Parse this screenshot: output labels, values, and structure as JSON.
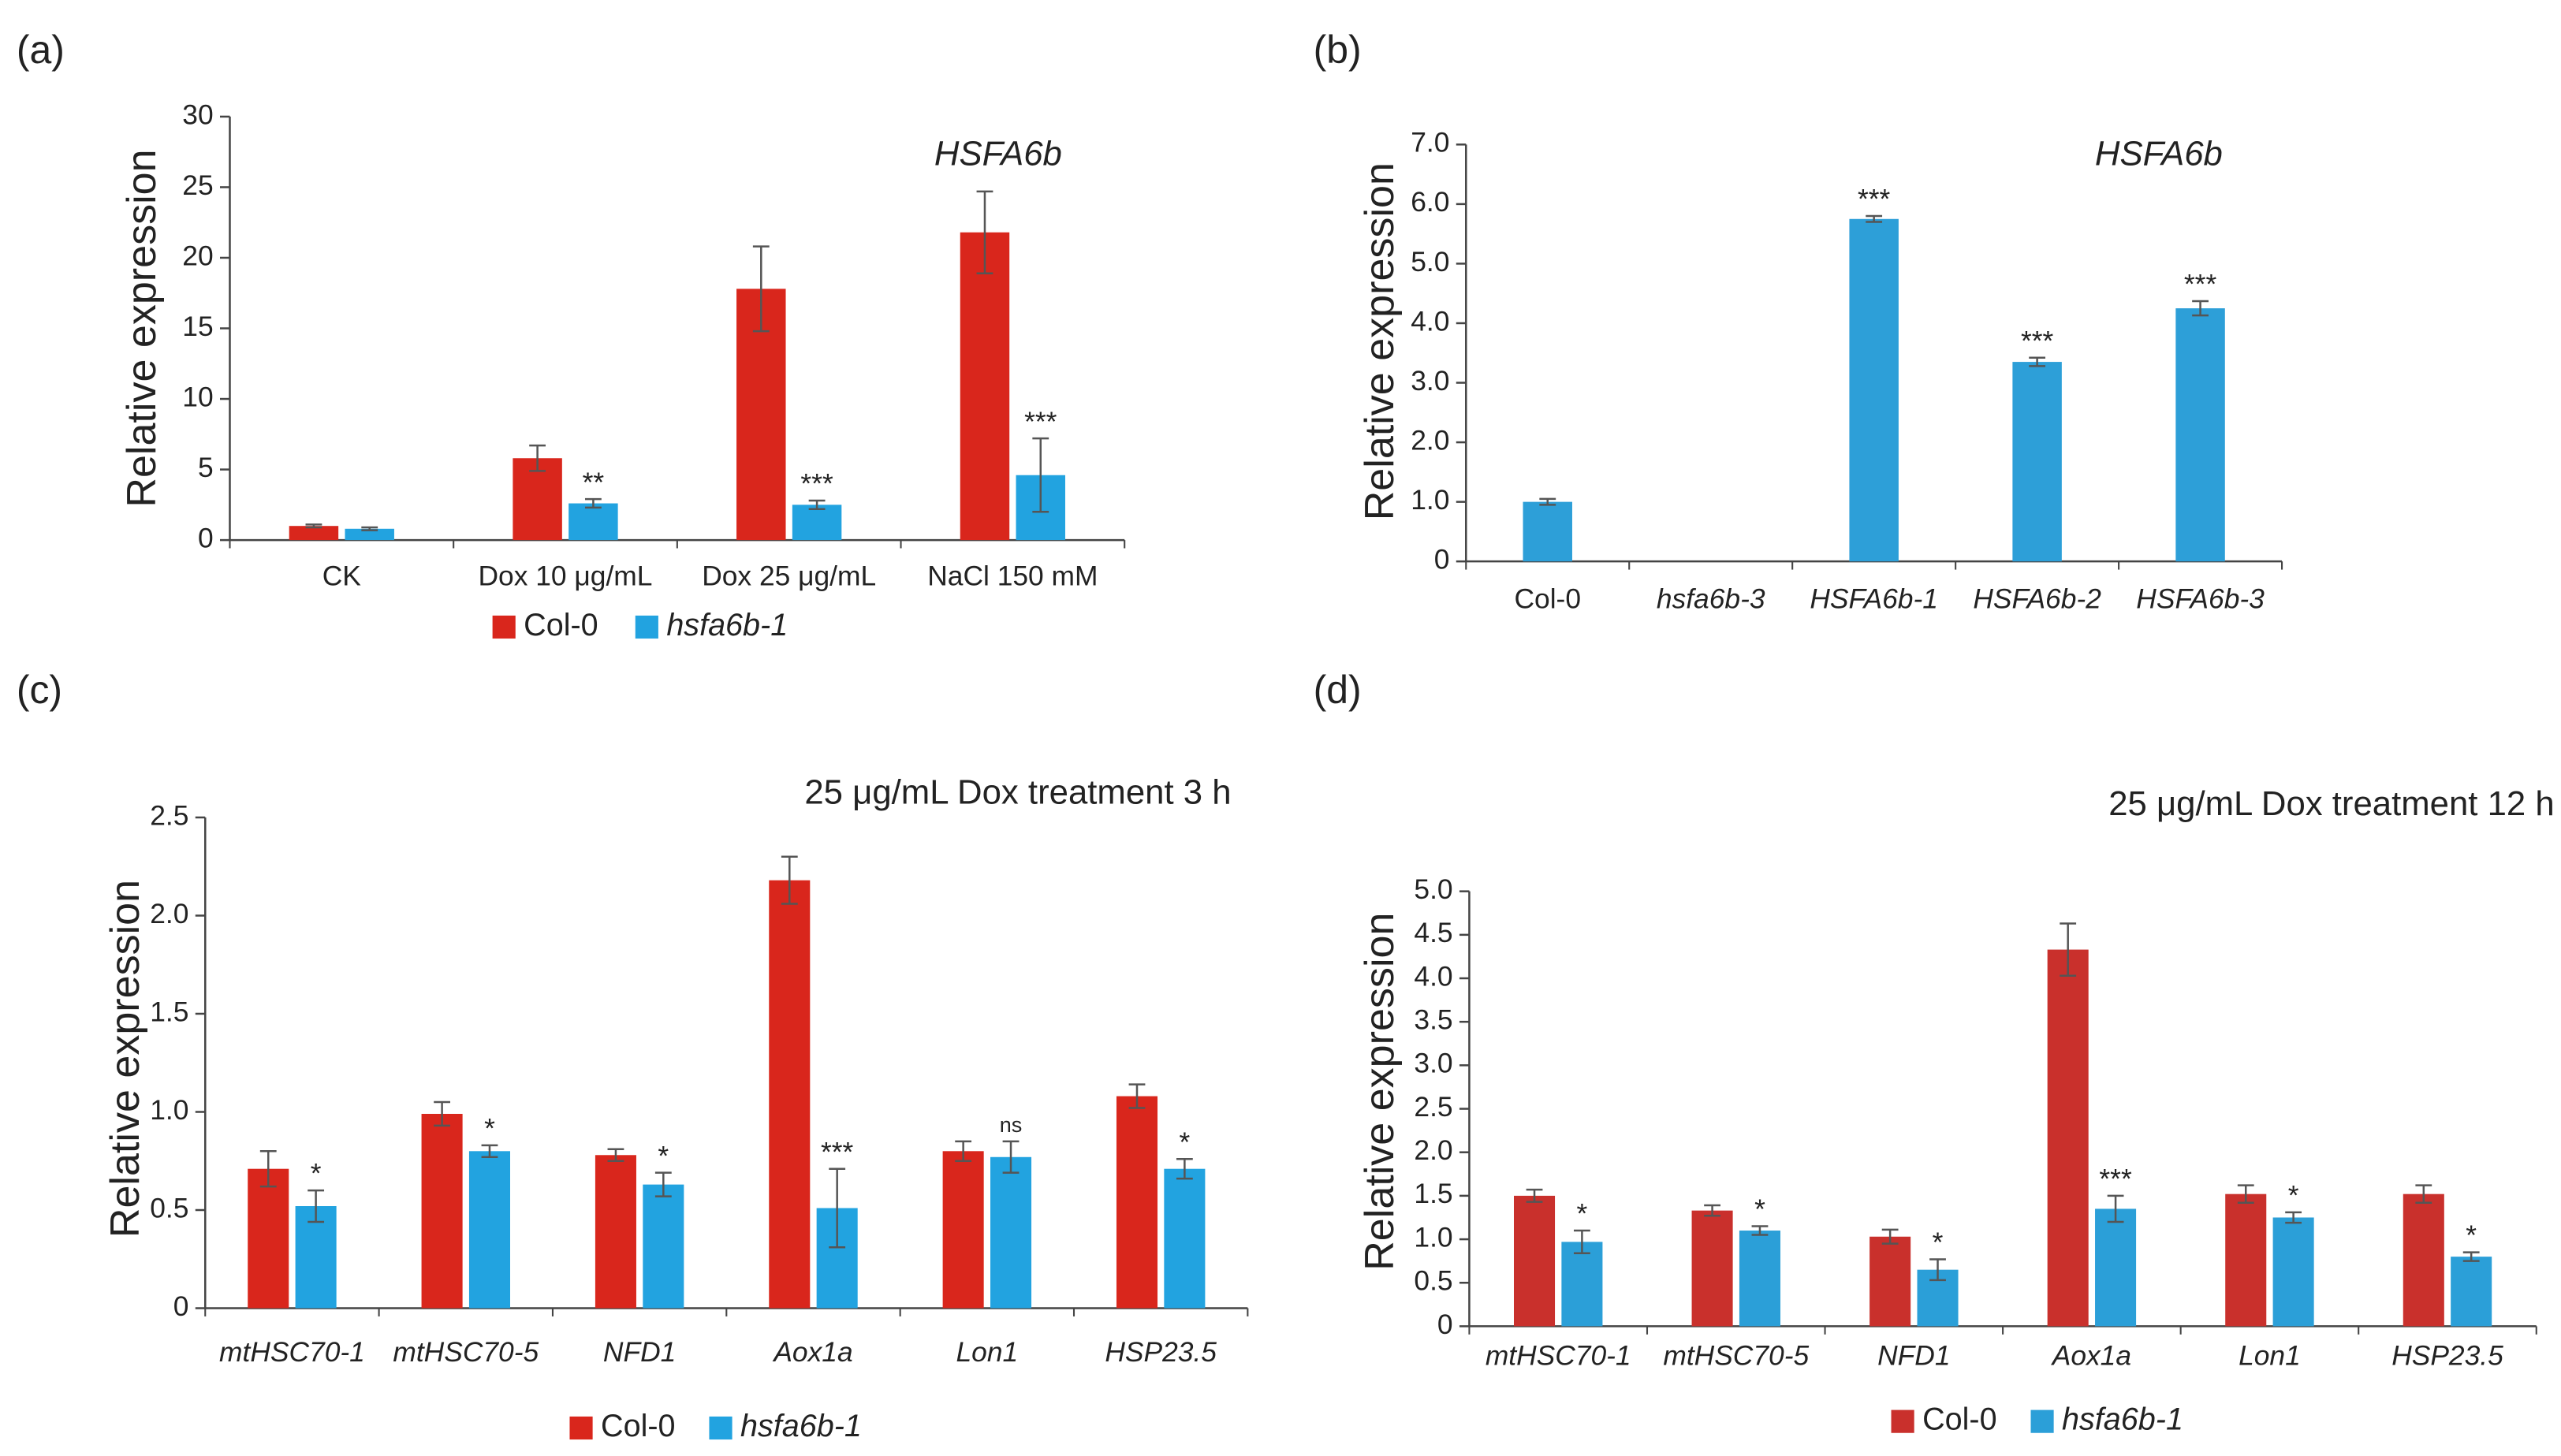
{
  "chart_data": [
    {
      "type": "bar",
      "panel_label": "(a)",
      "title": "HSFA6b",
      "title_italic": true,
      "ylabel": "Relative expression",
      "categories": [
        "CK",
        "Dox 10 μg/mL",
        "Dox 25 μg/mL",
        "NaCl 150 mM"
      ],
      "categories_italic": false,
      "series": [
        {
          "name": "Col-0",
          "color": "#d9261c",
          "values": [
            1.0,
            5.8,
            17.8,
            21.8
          ],
          "errors": [
            0.1,
            0.9,
            3.0,
            2.9
          ]
        },
        {
          "name": "hsfa6b-1",
          "name_italic": true,
          "color": "#22a3e0",
          "values": [
            0.8,
            2.6,
            2.5,
            4.6
          ],
          "errors": [
            0.1,
            0.3,
            0.3,
            2.6
          ],
          "annotations": [
            null,
            "**",
            "***",
            "***"
          ]
        }
      ],
      "ylim": [
        0,
        30
      ],
      "yticks": [
        0,
        5,
        10,
        15,
        20,
        25,
        30
      ]
    },
    {
      "type": "bar",
      "panel_label": "(b)",
      "title": "HSFA6b",
      "title_italic": true,
      "ylabel": "Relative expression",
      "categories": [
        "Col-0",
        "hsfa6b-3",
        "HSFA6b-1",
        "HSFA6b-2",
        "HSFA6b-3"
      ],
      "categories_italic": [
        false,
        true,
        true,
        true,
        true
      ],
      "color": "#2d9fd8",
      "values": [
        1.0,
        null,
        5.75,
        3.35,
        4.25
      ],
      "errors": [
        0.05,
        null,
        0.05,
        0.07,
        0.12
      ],
      "annotations": [
        null,
        null,
        "***",
        "***",
        "***"
      ],
      "ylim": [
        0,
        7
      ],
      "yticks": [
        0,
        {
          "value": 1,
          "label": "1.0"
        },
        {
          "value": 2,
          "label": "2.0"
        },
        {
          "value": 3,
          "label": "3.0"
        },
        {
          "value": 4,
          "label": "4.0"
        },
        {
          "value": 5,
          "label": "5.0"
        },
        {
          "value": 6,
          "label": "6.0"
        },
        {
          "value": 7,
          "label": "7.0"
        }
      ]
    },
    {
      "type": "bar",
      "panel_label": "(c)",
      "title": "25 μg/mL Dox treatment 3 h",
      "title_italic": false,
      "ylabel": "Relative expression",
      "categories": [
        "mtHSC70-1",
        "mtHSC70-5",
        "NFD1",
        "Aox1a",
        "Lon1",
        "HSP23.5"
      ],
      "categories_italic": true,
      "series": [
        {
          "name": "Col-0",
          "color": "#d9261c",
          "values": [
            0.71,
            0.99,
            0.78,
            2.18,
            0.8,
            1.08
          ],
          "errors": [
            0.09,
            0.06,
            0.03,
            0.12,
            0.05,
            0.06
          ]
        },
        {
          "name": "hsfa6b-1",
          "name_italic": true,
          "color": "#22a3e0",
          "values": [
            0.52,
            0.8,
            0.63,
            0.51,
            0.77,
            0.71
          ],
          "errors": [
            0.08,
            0.03,
            0.06,
            0.2,
            0.08,
            0.05
          ],
          "annotations": [
            "*",
            "*",
            "*",
            "***",
            "ns",
            "*"
          ]
        }
      ],
      "ylim": [
        0,
        2.5
      ],
      "yticks": [
        0,
        0.5,
        {
          "value": 1,
          "label": "1.0"
        },
        1.5,
        {
          "value": 2,
          "label": "2.0"
        },
        2.5
      ]
    },
    {
      "type": "bar",
      "panel_label": "(d)",
      "title": "25 μg/mL Dox treatment 12 h",
      "title_italic": false,
      "ylabel": "Relative expression",
      "categories": [
        "mtHSC70-1",
        "mtHSC70-5",
        "NFD1",
        "Aox1a",
        "Lon1",
        "HSP23.5"
      ],
      "categories_italic": true,
      "series": [
        {
          "name": "Col-0",
          "color": "#c9302c",
          "values": [
            1.5,
            1.33,
            1.03,
            4.33,
            1.52,
            1.52
          ],
          "errors": [
            0.07,
            0.06,
            0.08,
            0.3,
            0.1,
            0.1
          ]
        },
        {
          "name": "hsfa6b-1",
          "name_italic": true,
          "color": "#2b9fd8",
          "values": [
            0.97,
            1.1,
            0.65,
            1.35,
            1.25,
            0.8
          ],
          "errors": [
            0.13,
            0.05,
            0.12,
            0.15,
            0.06,
            0.05
          ],
          "annotations": [
            "*",
            "*",
            "*",
            "***",
            "*",
            "*"
          ]
        }
      ],
      "ylim": [
        0,
        5
      ],
      "yticks": [
        0,
        0.5,
        {
          "value": 1,
          "label": "1.0"
        },
        1.5,
        {
          "value": 2,
          "label": "2.0"
        },
        2.5,
        {
          "value": 3,
          "label": "3.0"
        },
        3.5,
        {
          "value": 4,
          "label": "4.0"
        },
        4.5,
        {
          "value": 5,
          "label": "5.0"
        }
      ]
    }
  ]
}
